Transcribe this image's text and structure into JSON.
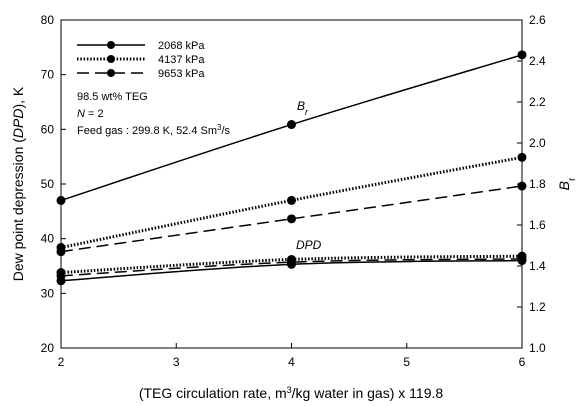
{
  "chart_data": {
    "type": "line",
    "xlabel": "(TEG circulation rate, m³/kg water in gas) x 119.8",
    "ylabel": "Dew point depression (DPD), K",
    "y2label": "Br",
    "xlim": [
      2,
      6
    ],
    "ylim": [
      20,
      80
    ],
    "y2lim": [
      1.0,
      2.6
    ],
    "x_ticks": [
      "2",
      "3",
      "4",
      "5",
      "6"
    ],
    "y_ticks": [
      "20",
      "30",
      "40",
      "50",
      "60",
      "70",
      "80"
    ],
    "y2_ticks": [
      "1.0",
      "1.2",
      "1.4",
      "1.6",
      "1.8",
      "2.0",
      "2.2",
      "2.4",
      "2.6"
    ],
    "grid": false,
    "legend_position": "top-left",
    "legend": [
      "2068 kPa",
      "4137 kPa",
      "9653 kPa"
    ],
    "annotations": {
      "line1": "98.5 wt% TEG",
      "line2": "N = 2",
      "line3": "Feed gas : 299.8 K, 52.4 Sm³/s",
      "br_label": "Br",
      "dpd_label": "DPD"
    },
    "series": [
      {
        "name": "2068 kPa",
        "group": "Br",
        "axis": "right",
        "style": "solid",
        "x": [
          2,
          4,
          6
        ],
        "y": [
          1.72,
          2.09,
          2.43
        ]
      },
      {
        "name": "4137 kPa",
        "group": "Br",
        "axis": "right",
        "style": "dotted",
        "x": [
          2,
          4,
          6
        ],
        "y": [
          1.49,
          1.72,
          1.93
        ]
      },
      {
        "name": "9653 kPa",
        "group": "Br",
        "axis": "right",
        "style": "dashed",
        "x": [
          2,
          4,
          6
        ],
        "y": [
          1.47,
          1.63,
          1.79
        ]
      },
      {
        "name": "2068 kPa",
        "group": "DPD",
        "axis": "left",
        "style": "solid",
        "x": [
          2,
          4,
          6
        ],
        "y": [
          32.3,
          35.3,
          36.0
        ]
      },
      {
        "name": "4137 kPa",
        "group": "DPD",
        "axis": "left",
        "style": "dotted",
        "x": [
          2,
          4,
          6
        ],
        "y": [
          33.8,
          36.2,
          36.8
        ]
      },
      {
        "name": "9653 kPa",
        "group": "DPD",
        "axis": "left",
        "style": "dashed",
        "x": [
          2,
          4,
          6
        ],
        "y": [
          33.2,
          35.7,
          36.3
        ]
      }
    ]
  }
}
